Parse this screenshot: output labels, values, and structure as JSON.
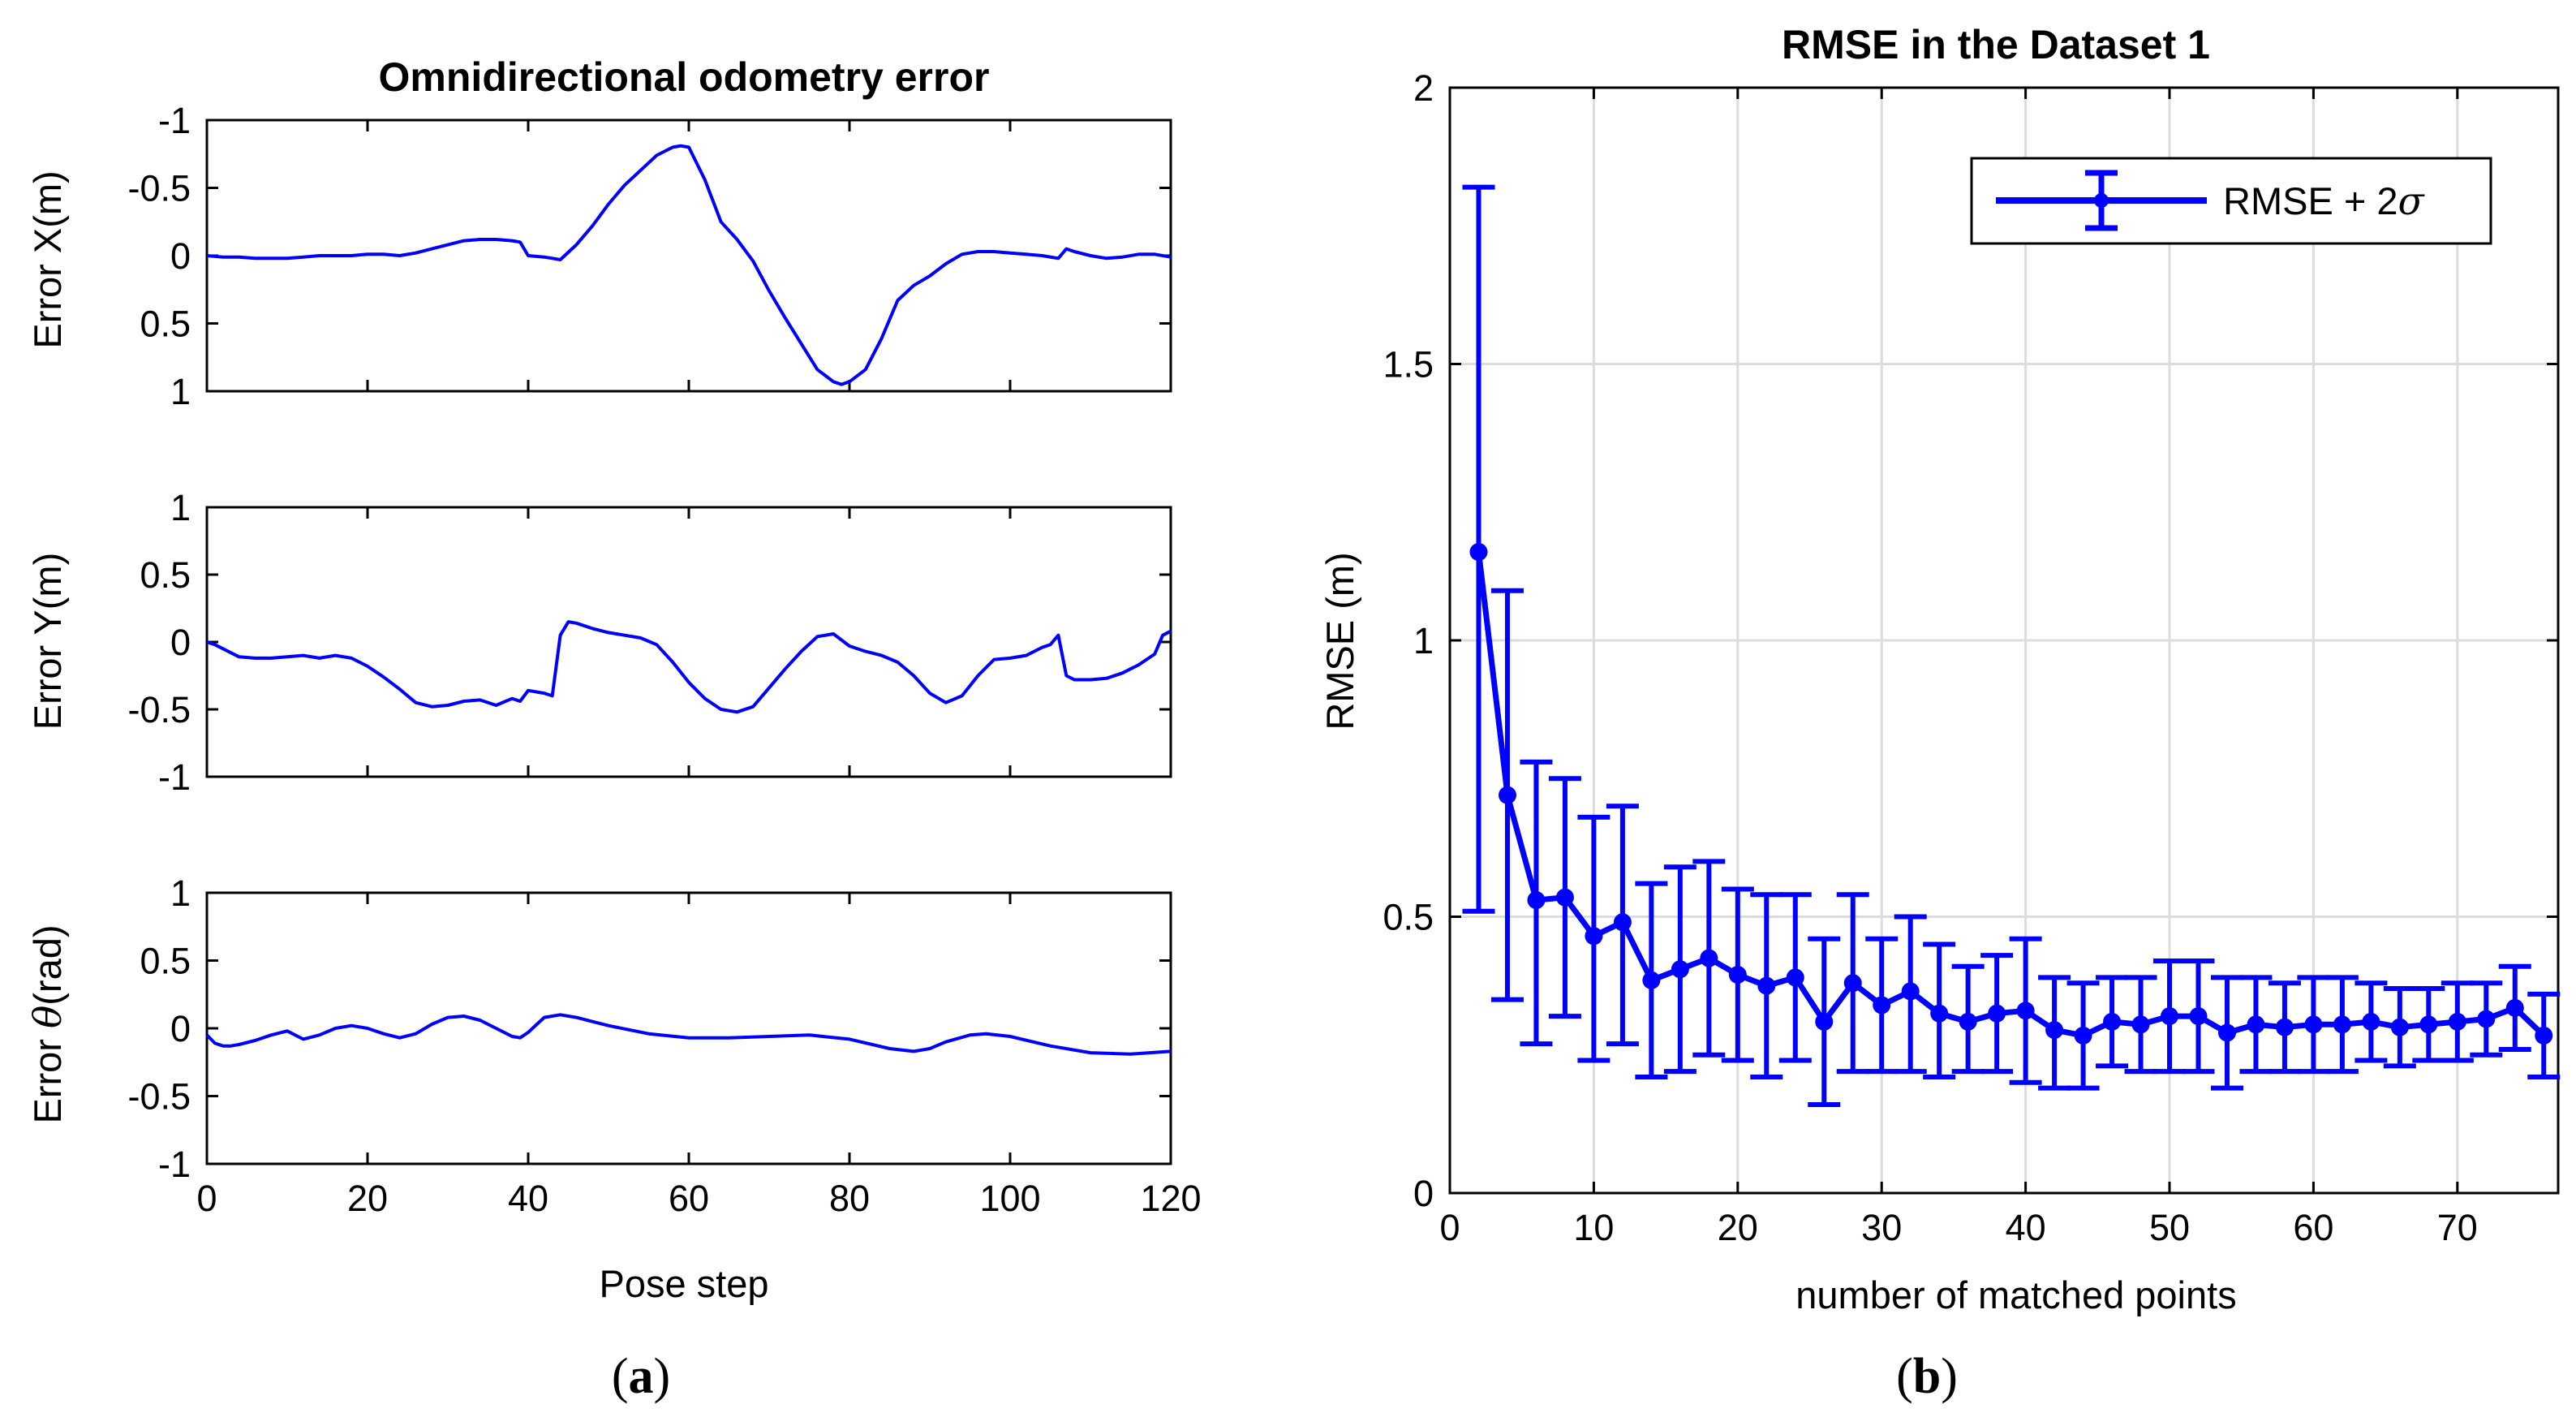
{
  "captions": {
    "a_open": "(",
    "a_letter": "a",
    "a_close": ")",
    "b_open": "(",
    "b_letter": "b",
    "b_close": ")"
  },
  "colors": {
    "line": "#0000ff",
    "grid": "#dcdcdc",
    "axis": "#000000"
  },
  "chart_data": [
    {
      "id": "odometry-x",
      "type": "line",
      "title": "Omnidirectional odometry error",
      "ylabel": "Error X(m)",
      "xlabel": "",
      "xlim": [
        0,
        120
      ],
      "ylim": [
        -1,
        1
      ],
      "y_reversed": true,
      "yticks": [
        -1,
        -0.5,
        0,
        0.5,
        1
      ],
      "ytick_labels": [
        "-1",
        "-0.5",
        "0",
        "0.5",
        "1"
      ],
      "xticks": [
        0,
        20,
        40,
        60,
        80,
        100,
        120
      ],
      "xtick_labels": [],
      "grid": false,
      "series": [
        {
          "name": "Error X",
          "x": [
            0,
            2,
            4,
            6,
            8,
            10,
            12,
            14,
            16,
            18,
            20,
            22,
            24,
            26,
            28,
            30,
            32,
            34,
            36,
            38,
            39,
            40,
            42,
            43,
            44,
            46,
            48,
            50,
            52,
            54,
            56,
            58,
            59,
            60,
            62,
            64,
            66,
            68,
            70,
            72,
            74,
            76,
            78,
            79,
            80,
            82,
            84,
            86,
            88,
            90,
            92,
            94,
            96,
            98,
            100,
            102,
            104,
            106,
            107,
            108,
            110,
            112,
            114,
            116,
            118,
            120
          ],
          "y": [
            0,
            0.01,
            0.01,
            0.02,
            0.02,
            0.02,
            0.01,
            0.0,
            0.0,
            0.0,
            -0.01,
            -0.01,
            0.0,
            -0.02,
            -0.05,
            -0.08,
            -0.11,
            -0.12,
            -0.12,
            -0.11,
            -0.1,
            0.0,
            0.01,
            0.02,
            0.03,
            -0.08,
            -0.22,
            -0.38,
            -0.52,
            -0.63,
            -0.74,
            -0.8,
            -0.81,
            -0.8,
            -0.56,
            -0.25,
            -0.12,
            0.04,
            0.26,
            0.46,
            0.65,
            0.84,
            0.93,
            0.95,
            0.93,
            0.84,
            0.61,
            0.33,
            0.22,
            0.15,
            0.06,
            -0.01,
            -0.03,
            -0.03,
            -0.02,
            -0.01,
            0.0,
            0.02,
            -0.05,
            -0.03,
            0.0,
            0.02,
            0.01,
            -0.01,
            -0.01,
            0.01
          ]
        }
      ]
    },
    {
      "id": "odometry-y",
      "type": "line",
      "title": "",
      "ylabel": "Error Y(m)",
      "xlabel": "",
      "xlim": [
        0,
        120
      ],
      "ylim": [
        -1,
        1
      ],
      "y_reversed": false,
      "yticks": [
        1,
        0.5,
        0,
        -0.5,
        -1
      ],
      "ytick_labels": [
        "1",
        "0.5",
        "0",
        "-0.5",
        "-1"
      ],
      "xticks": [
        0,
        20,
        40,
        60,
        80,
        100,
        120
      ],
      "xtick_labels": [],
      "grid": false,
      "series": [
        {
          "name": "Error Y",
          "x": [
            0,
            1,
            2,
            3,
            4,
            6,
            8,
            10,
            12,
            14,
            16,
            18,
            20,
            22,
            24,
            26,
            28,
            30,
            32,
            34,
            36,
            38,
            39,
            40,
            42,
            43,
            44,
            45,
            46,
            48,
            50,
            52,
            54,
            56,
            58,
            60,
            62,
            64,
            66,
            68,
            70,
            72,
            74,
            76,
            78,
            80,
            82,
            84,
            86,
            88,
            90,
            92,
            94,
            96,
            98,
            100,
            102,
            104,
            105,
            106,
            107,
            108,
            110,
            112,
            114,
            116,
            118,
            119,
            120
          ],
          "y": [
            0.0,
            -0.02,
            -0.05,
            -0.08,
            -0.11,
            -0.12,
            -0.12,
            -0.11,
            -0.1,
            -0.12,
            -0.1,
            -0.12,
            -0.18,
            -0.26,
            -0.35,
            -0.45,
            -0.48,
            -0.47,
            -0.44,
            -0.43,
            -0.47,
            -0.42,
            -0.44,
            -0.36,
            -0.38,
            -0.4,
            0.05,
            0.15,
            0.14,
            0.1,
            0.07,
            0.05,
            0.03,
            -0.02,
            -0.15,
            -0.3,
            -0.42,
            -0.5,
            -0.52,
            -0.48,
            -0.34,
            -0.2,
            -0.07,
            0.04,
            0.06,
            -0.03,
            -0.07,
            -0.1,
            -0.15,
            -0.25,
            -0.38,
            -0.45,
            -0.4,
            -0.25,
            -0.13,
            -0.12,
            -0.1,
            -0.04,
            -0.02,
            0.05,
            -0.25,
            -0.28,
            -0.28,
            -0.27,
            -0.23,
            -0.17,
            -0.09,
            0.05,
            0.08
          ]
        }
      ]
    },
    {
      "id": "odometry-theta",
      "type": "line",
      "title": "",
      "ylabel_prefix": "Error ",
      "ylabel_symbol": "θ",
      "ylabel_suffix": "(rad)",
      "xlabel": "Pose step",
      "xlim": [
        0,
        120
      ],
      "ylim": [
        -1,
        1
      ],
      "y_reversed": false,
      "yticks": [
        1,
        0.5,
        0,
        -0.5,
        -1
      ],
      "ytick_labels": [
        "1",
        "0.5",
        "0",
        "-0.5",
        "-1"
      ],
      "xticks": [
        0,
        20,
        40,
        60,
        80,
        100,
        120
      ],
      "xtick_labels": [
        "0",
        "20",
        "40",
        "60",
        "80",
        "100",
        "120"
      ],
      "grid": false,
      "series": [
        {
          "name": "Error theta",
          "x": [
            0,
            1,
            2,
            3,
            4,
            6,
            8,
            10,
            12,
            14,
            16,
            18,
            20,
            22,
            24,
            26,
            28,
            30,
            32,
            34,
            36,
            38,
            39,
            40,
            42,
            44,
            46,
            48,
            50,
            55,
            60,
            65,
            70,
            75,
            80,
            85,
            88,
            90,
            92,
            95,
            97,
            100,
            105,
            110,
            115,
            120
          ],
          "y": [
            -0.05,
            -0.11,
            -0.13,
            -0.13,
            -0.12,
            -0.09,
            -0.05,
            -0.02,
            -0.08,
            -0.05,
            0.0,
            0.02,
            0.0,
            -0.04,
            -0.07,
            -0.04,
            0.03,
            0.08,
            0.09,
            0.06,
            0.0,
            -0.06,
            -0.07,
            -0.03,
            0.08,
            0.1,
            0.08,
            0.05,
            0.02,
            -0.04,
            -0.07,
            -0.07,
            -0.06,
            -0.05,
            -0.08,
            -0.15,
            -0.17,
            -0.15,
            -0.1,
            -0.05,
            -0.04,
            -0.06,
            -0.13,
            -0.18,
            -0.19,
            -0.17
          ]
        }
      ]
    },
    {
      "id": "rmse-dataset1",
      "type": "errorbar",
      "title": "RMSE in the Dataset 1",
      "xlabel": "number of matched points",
      "ylabel": "RMSE (m)",
      "xlim": [
        0,
        77
      ],
      "ylim": [
        0,
        2
      ],
      "xticks": [
        0,
        10,
        20,
        30,
        40,
        50,
        60,
        70
      ],
      "xtick_labels": [
        "0",
        "10",
        "20",
        "30",
        "40",
        "50",
        "60",
        "70"
      ],
      "yticks": [
        0,
        0.5,
        1,
        1.5,
        2
      ],
      "ytick_labels": [
        "0",
        "0.5",
        "1",
        "1.5",
        "2"
      ],
      "grid": true,
      "legend": {
        "label_prefix": "RMSE + 2",
        "label_symbol": "σ",
        "position": "top-right"
      },
      "series": [
        {
          "name": "RMSE + 2σ",
          "x": [
            2,
            4,
            6,
            8,
            10,
            12,
            14,
            16,
            18,
            20,
            22,
            24,
            26,
            28,
            30,
            32,
            34,
            36,
            38,
            40,
            42,
            44,
            46,
            48,
            50,
            52,
            54,
            56,
            58,
            60,
            62,
            64,
            66,
            68,
            70,
            72,
            74,
            76
          ],
          "y": [
            1.16,
            0.72,
            0.53,
            0.535,
            0.465,
            0.49,
            0.385,
            0.405,
            0.425,
            0.395,
            0.375,
            0.39,
            0.31,
            0.38,
            0.34,
            0.365,
            0.325,
            0.31,
            0.325,
            0.33,
            0.295,
            0.285,
            0.31,
            0.305,
            0.32,
            0.32,
            0.29,
            0.305,
            0.3,
            0.305,
            0.305,
            0.31,
            0.3,
            0.305,
            0.31,
            0.315,
            0.335,
            0.285
          ],
          "upper": [
            1.82,
            1.09,
            0.78,
            0.75,
            0.68,
            0.7,
            0.56,
            0.59,
            0.6,
            0.55,
            0.54,
            0.54,
            0.46,
            0.54,
            0.46,
            0.5,
            0.45,
            0.41,
            0.43,
            0.46,
            0.39,
            0.38,
            0.39,
            0.39,
            0.42,
            0.42,
            0.39,
            0.39,
            0.38,
            0.39,
            0.39,
            0.38,
            0.37,
            0.37,
            0.38,
            0.38,
            0.41,
            0.36
          ],
          "lower": [
            0.51,
            0.35,
            0.27,
            0.32,
            0.24,
            0.27,
            0.21,
            0.22,
            0.25,
            0.24,
            0.21,
            0.24,
            0.16,
            0.22,
            0.22,
            0.22,
            0.21,
            0.22,
            0.22,
            0.2,
            0.19,
            0.19,
            0.23,
            0.22,
            0.22,
            0.22,
            0.19,
            0.22,
            0.22,
            0.22,
            0.22,
            0.24,
            0.23,
            0.24,
            0.24,
            0.25,
            0.26,
            0.21
          ]
        }
      ]
    }
  ]
}
